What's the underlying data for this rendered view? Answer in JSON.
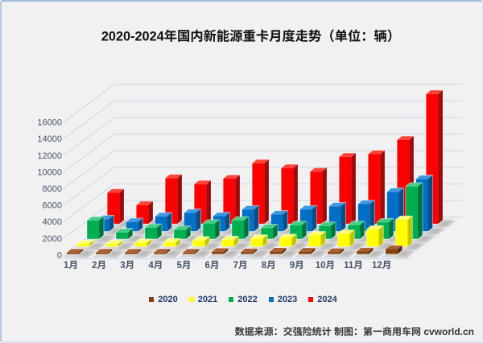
{
  "window": {
    "background": "#f1f1f2",
    "border_color": "#a9c3e2"
  },
  "title": {
    "text": "2020-2024年国内新能源重卡月度走势（单位：辆）",
    "color": "#111111"
  },
  "y_axis": {
    "ticks": [
      0,
      2000,
      4000,
      6000,
      8000,
      10000,
      12000,
      14000,
      16000
    ],
    "color": "#44546a"
  },
  "x_axis": {
    "labels": [
      "1月",
      "2月",
      "3月",
      "4月",
      "5月",
      "6月",
      "7月",
      "8月",
      "9月",
      "10月",
      "11月",
      "12月"
    ],
    "color": "#44546a"
  },
  "legend": {
    "items": [
      {
        "label": "2020",
        "color": "#843C0C"
      },
      {
        "label": "2021",
        "color": "#FFFF00"
      },
      {
        "label": "2022",
        "color": "#00B050"
      },
      {
        "label": "2023",
        "color": "#0070C0"
      },
      {
        "label": "2024",
        "color": "#FF0000"
      }
    ],
    "label_color": "#1f3864"
  },
  "footer": {
    "text": "数据来源：交强险统计 制图：第一商用车网 cvworld.cn",
    "color": "#373737"
  },
  "chart_data": {
    "type": "bar",
    "variant": "3d-column",
    "title": "2020-2024年国内新能源重卡月度走势（单位：辆）",
    "xlabel": "",
    "ylabel": "",
    "unit": "辆",
    "categories": [
      "1月",
      "2月",
      "3月",
      "4月",
      "5月",
      "6月",
      "7月",
      "8月",
      "9月",
      "10月",
      "11月",
      "12月"
    ],
    "series": [
      {
        "name": "2020",
        "color": "#843C0C",
        "values": [
          100,
          60,
          100,
          170,
          160,
          250,
          210,
          280,
          270,
          230,
          290,
          580
        ]
      },
      {
        "name": "2021",
        "color": "#FFFF00",
        "values": [
          280,
          270,
          420,
          480,
          720,
          770,
          930,
          1020,
          1340,
          1510,
          2040,
          3200
        ]
      },
      {
        "name": "2022",
        "color": "#00B050",
        "values": [
          2220,
          780,
          1330,
          1080,
          1840,
          2210,
          1280,
          1650,
          1560,
          1650,
          1980,
          6310
        ]
      },
      {
        "name": "2023",
        "color": "#0070C0",
        "values": [
          1460,
          1110,
          1790,
          2220,
          1830,
          2630,
          2040,
          2640,
          3010,
          3280,
          4760,
          6310
        ]
      },
      {
        "name": "2024",
        "color": "#FF0000",
        "values": [
          3740,
          2250,
          5490,
          4760,
          5430,
          7290,
          6700,
          6290,
          8060,
          8390,
          10100,
          15650
        ]
      }
    ],
    "ylim": [
      0,
      16000
    ],
    "ytick_step": 2000,
    "grid": true,
    "legend_position": "bottom"
  }
}
